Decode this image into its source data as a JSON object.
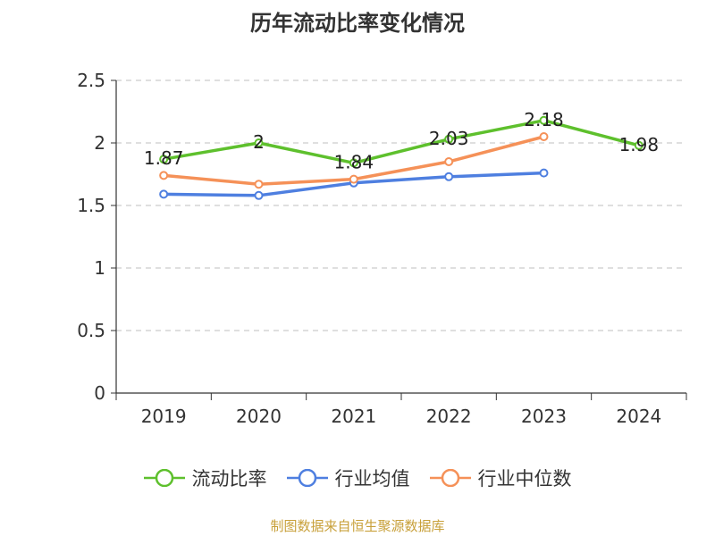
{
  "chart_data": {
    "type": "line",
    "title": "历年流动比率变化情况",
    "categories": [
      "2019",
      "2020",
      "2021",
      "2022",
      "2023",
      "2024"
    ],
    "ylim": [
      0,
      2.5
    ],
    "yticks": [
      "0",
      "0.5",
      "1",
      "1.5",
      "2",
      "2.5"
    ],
    "grid": true,
    "legend_position": "bottom",
    "series": [
      {
        "name": "流动比率",
        "color": "#5ec02d",
        "values": [
          1.87,
          2.0,
          1.84,
          2.03,
          2.18,
          1.98
        ],
        "labels": [
          "1.87",
          "2",
          "1.84",
          "2.03",
          "2.18",
          "1.98"
        ]
      },
      {
        "name": "行业均值",
        "color": "#4e7fe0",
        "values": [
          1.59,
          1.58,
          1.68,
          1.73,
          1.76,
          null
        ]
      },
      {
        "name": "行业中位数",
        "color": "#f59158",
        "values": [
          1.74,
          1.67,
          1.71,
          1.85,
          2.05,
          null
        ]
      }
    ]
  },
  "source_note": "制图数据来自恒生聚源数据库"
}
